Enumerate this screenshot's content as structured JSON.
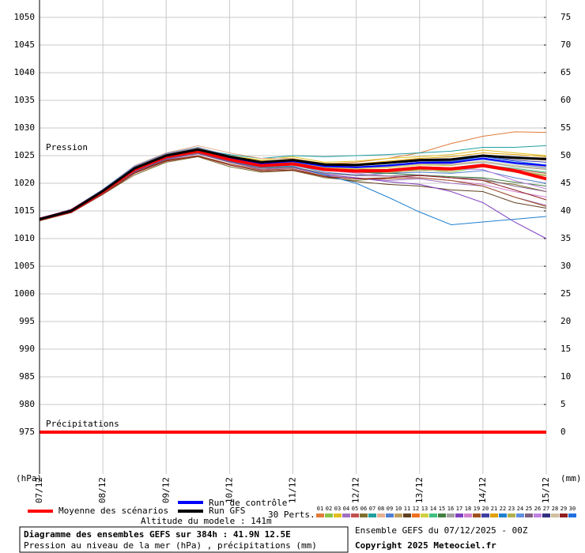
{
  "chart_data": {
    "type": "line",
    "pressure_label": "Pression",
    "precip_label": "Précipitations",
    "ylabel": "(hPa)",
    "y2label": "(mm)",
    "perts_label": "30 Perts.",
    "altitude": "Altitude du modele : 141m",
    "title": "Diagramme des ensembles GEFS sur 384h : 41.9N 12.5E",
    "subtitle": "Pression au niveau de la mer (hPa) , précipitations (mm)",
    "run_info": "Ensemble GEFS du 07/12/2025 - 00Z",
    "copyright": "Copyright 2025 Meteociel.fr",
    "ylim": [
      975,
      1050
    ],
    "yticks": [
      975,
      980,
      985,
      990,
      995,
      1000,
      1005,
      1010,
      1015,
      1020,
      1025,
      1030,
      1035,
      1040,
      1045,
      1050
    ],
    "y2lim": [
      0,
      75
    ],
    "y2ticks": [
      0,
      5,
      10,
      15,
      20,
      25,
      30,
      35,
      40,
      45,
      50,
      55,
      60,
      65,
      70,
      75
    ],
    "grid": true,
    "categories": [
      "07/12",
      null,
      "08/12",
      null,
      "09/12",
      null,
      "10/12",
      null,
      "11/12",
      null,
      "12/12",
      null,
      "13/12",
      null,
      "14/12",
      null,
      "15/12"
    ],
    "series": [
      {
        "name": "Moyenne des scénarios",
        "color": "#ff0000",
        "width": 4,
        "values": [
          1013.5,
          1015,
          1018.5,
          1022.5,
          1024.8,
          1025.8,
          1024.3,
          1023.2,
          1023.5,
          1022.5,
          1022.2,
          1022.3,
          1022.8,
          1022.6,
          1023.2,
          1022.3,
          1020.8
        ]
      },
      {
        "name": "Run de contrôle",
        "color": "#0000ff",
        "width": 2,
        "values": [
          1013.6,
          1015.1,
          1018.6,
          1022.8,
          1025.1,
          1026.2,
          1024.7,
          1023.6,
          1024,
          1023.1,
          1022.9,
          1023.2,
          1023.7,
          1023.7,
          1024.5,
          1023.7,
          1023.2
        ]
      },
      {
        "name": "Run GFS",
        "color": "#000000",
        "width": 3,
        "values": [
          1013.5,
          1015,
          1018.6,
          1022.7,
          1025,
          1026.1,
          1024.8,
          1023.8,
          1024.2,
          1023.4,
          1023.3,
          1023.7,
          1024.2,
          1024.3,
          1025,
          1024.6,
          1024.4
        ]
      },
      {
        "name": "01",
        "color": "#e07b39",
        "values": [
          1013.4,
          1015.2,
          1018.8,
          1022.8,
          1025.2,
          1026.3,
          1024.8,
          1023.8,
          1024.2,
          1023.5,
          1023.8,
          1024.5,
          1025.5,
          1027.2,
          1028.5,
          1029.3,
          1029.2
        ]
      },
      {
        "name": "02",
        "color": "#8bc34a",
        "values": [
          1013.6,
          1014.9,
          1018.2,
          1022.2,
          1024.5,
          1025.5,
          1024,
          1022.8,
          1023,
          1021.8,
          1021.5,
          1021.8,
          1022.5,
          1022,
          1023,
          1022,
          1021.5
        ]
      },
      {
        "name": "03",
        "color": "#e0c020",
        "values": [
          1013.5,
          1015.3,
          1018.6,
          1022.9,
          1025.4,
          1026.5,
          1025,
          1024.2,
          1024.8,
          1023.8,
          1024,
          1024.5,
          1024.8,
          1025.2,
          1026,
          1025.5,
          1025
        ]
      },
      {
        "name": "04",
        "color": "#a070c0",
        "values": [
          1013.3,
          1014.8,
          1018.3,
          1022,
          1024.3,
          1025.3,
          1023.8,
          1022.5,
          1022.8,
          1021.5,
          1021,
          1020.5,
          1020.8,
          1020,
          1019.5,
          1017.5,
          1016
        ]
      },
      {
        "name": "05",
        "color": "#c05050",
        "values": [
          1013.7,
          1015.1,
          1018.7,
          1023,
          1025,
          1026,
          1024.5,
          1023.3,
          1023.5,
          1022.8,
          1022.5,
          1022.5,
          1023,
          1022.8,
          1023.5,
          1022.5,
          1021.8
        ]
      },
      {
        "name": "06",
        "color": "#807030",
        "values": [
          1013.2,
          1014.7,
          1018,
          1021.5,
          1023.8,
          1024.8,
          1023,
          1022,
          1022.3,
          1021,
          1020.5,
          1021,
          1021.5,
          1021,
          1020.5,
          1019.8,
          1018.5
        ]
      },
      {
        "name": "07",
        "color": "#20a0a0",
        "values": [
          1013.5,
          1015,
          1018.4,
          1022.6,
          1025,
          1026.2,
          1025.2,
          1024.5,
          1025,
          1024.8,
          1025,
          1025.2,
          1025.5,
          1025.8,
          1026.5,
          1026.5,
          1026.8
        ]
      },
      {
        "name": "08",
        "color": "#e8b090",
        "values": [
          1013.6,
          1015.2,
          1018.9,
          1023.2,
          1025.5,
          1026.8,
          1025.5,
          1024.5,
          1024.5,
          1023.5,
          1023,
          1023,
          1023.5,
          1023.5,
          1024.5,
          1023.5,
          1023
        ]
      },
      {
        "name": "09",
        "color": "#5080d0",
        "values": [
          1013.4,
          1014.9,
          1018.5,
          1022.3,
          1024.6,
          1025.6,
          1024,
          1023,
          1023.3,
          1022,
          1021.5,
          1021.8,
          1022,
          1021.8,
          1022.3,
          1021,
          1020
        ]
      },
      {
        "name": "10",
        "color": "#c0a060",
        "values": [
          1013.5,
          1015,
          1018.3,
          1022.5,
          1024.8,
          1025.7,
          1024.2,
          1023.1,
          1023.4,
          1022.3,
          1022,
          1022,
          1022.3,
          1022.3,
          1023,
          1022,
          1021.3
        ]
      },
      {
        "name": "11",
        "color": "#604020",
        "values": [
          1013.3,
          1014.8,
          1018.1,
          1022,
          1024.2,
          1025,
          1023.3,
          1022.2,
          1022.4,
          1021.2,
          1020.3,
          1019.8,
          1019.5,
          1018.8,
          1018.5,
          1016.5,
          1015.5
        ]
      },
      {
        "name": "12",
        "color": "#f07020",
        "values": [
          1013.6,
          1015.3,
          1018.8,
          1023,
          1025.3,
          1026.4,
          1025,
          1023.9,
          1024.3,
          1023.3,
          1023.2,
          1023.6,
          1024,
          1024.3,
          1025,
          1024.5,
          1024.2
        ]
      },
      {
        "name": "13",
        "color": "#d0d040",
        "values": [
          1013.5,
          1015,
          1018.5,
          1022.7,
          1024.9,
          1026,
          1024.5,
          1023.4,
          1023.8,
          1022.8,
          1022.6,
          1022.8,
          1023.3,
          1023.2,
          1024,
          1023.2,
          1022.6
        ]
      },
      {
        "name": "14",
        "color": "#40c080",
        "values": [
          1013.4,
          1014.9,
          1018.4,
          1022.4,
          1024.7,
          1025.8,
          1024.3,
          1023.2,
          1023.4,
          1022.5,
          1022.3,
          1022.4,
          1022.8,
          1022.7,
          1023.3,
          1022.7,
          1022
        ]
      },
      {
        "name": "15",
        "color": "#408040",
        "values": [
          1013.5,
          1015.1,
          1018.6,
          1022.7,
          1024.9,
          1025.9,
          1024.4,
          1023.3,
          1023.6,
          1022.4,
          1022,
          1021.8,
          1021.5,
          1021.2,
          1021,
          1020.2,
          1019.5
        ]
      },
      {
        "name": "16",
        "color": "#a0a0a0",
        "values": [
          1013.6,
          1015.2,
          1018.7,
          1022.8,
          1025.1,
          1026.1,
          1024.6,
          1023.5,
          1023.8,
          1022.9,
          1022.8,
          1023,
          1023.5,
          1023.3,
          1023.8,
          1023,
          1022.5
        ]
      },
      {
        "name": "17",
        "color": "#8040c0",
        "values": [
          1013.4,
          1014.8,
          1018.2,
          1022.1,
          1024.4,
          1025.4,
          1023.9,
          1022.7,
          1022.9,
          1021.6,
          1021,
          1020.3,
          1019.8,
          1018.5,
          1016.5,
          1013,
          1010
        ]
      },
      {
        "name": "18",
        "color": "#d080d0",
        "values": [
          1013.5,
          1015,
          1018.5,
          1022.6,
          1024.8,
          1025.9,
          1024.4,
          1023.3,
          1023.5,
          1022.4,
          1021.8,
          1021.3,
          1021,
          1020.5,
          1019.8,
          1018.5,
          1017.5
        ]
      },
      {
        "name": "19",
        "color": "#a05020",
        "values": [
          1013.3,
          1014.7,
          1018.1,
          1021.9,
          1024.1,
          1025,
          1023.5,
          1022.4,
          1022.6,
          1021.3,
          1020.8,
          1020.8,
          1021,
          1020.5,
          1019.5,
          1017.5,
          1015.8
        ]
      },
      {
        "name": "20",
        "color": "#4040a0",
        "values": [
          1013.6,
          1015.1,
          1018.6,
          1022.8,
          1025.1,
          1026.1,
          1024.7,
          1023.8,
          1024.2,
          1023.4,
          1023.2,
          1023.6,
          1024,
          1024,
          1024.8,
          1024.2,
          1023.8
        ]
      },
      {
        "name": "21",
        "color": "#e0a000",
        "values": [
          1013.5,
          1015.2,
          1018.7,
          1022.9,
          1025.2,
          1026.4,
          1025,
          1024,
          1024.4,
          1023.6,
          1023.5,
          1024,
          1024.5,
          1024.8,
          1025.5,
          1025.2,
          1024.8
        ]
      },
      {
        "name": "22",
        "color": "#2080d0",
        "values": [
          1013.4,
          1014.9,
          1018.4,
          1022.4,
          1024.6,
          1025.6,
          1024,
          1022.9,
          1023.1,
          1021.5,
          1020,
          1017.5,
          1014.8,
          1012.5,
          1013,
          1013.5,
          1014
        ]
      },
      {
        "name": "23",
        "color": "#b0b050",
        "values": [
          1013.5,
          1015,
          1018.5,
          1022.5,
          1024.8,
          1025.8,
          1024.3,
          1023.2,
          1023.5,
          1022.5,
          1022.2,
          1022.3,
          1022.6,
          1022.5,
          1023,
          1022.3,
          1021.5
        ]
      },
      {
        "name": "24",
        "color": "#6090e0",
        "values": [
          1013.6,
          1015.3,
          1018.9,
          1023.1,
          1025.4,
          1026.5,
          1025,
          1023.9,
          1024.3,
          1023.3,
          1023,
          1023.3,
          1023.8,
          1023.8,
          1024.3,
          1023.5,
          1022.8
        ]
      },
      {
        "name": "25",
        "color": "#806080",
        "values": [
          1013.4,
          1014.8,
          1018.2,
          1022.2,
          1024.5,
          1025.4,
          1023.8,
          1022.7,
          1022.9,
          1021.8,
          1021.4,
          1021.3,
          1021.5,
          1021,
          1020.8,
          1019.5,
          1018.5
        ]
      },
      {
        "name": "26",
        "color": "#c080e0",
        "values": [
          1013.5,
          1015,
          1018.4,
          1022.6,
          1024.8,
          1025.9,
          1024.4,
          1023.3,
          1023.6,
          1022.6,
          1022.4,
          1022.5,
          1022.9,
          1022.6,
          1022.5,
          1020.5,
          1019
        ]
      },
      {
        "name": "27",
        "color": "#303080",
        "values": [
          1013.5,
          1015.1,
          1018.6,
          1022.7,
          1025,
          1026.1,
          1024.6,
          1023.6,
          1024,
          1023.2,
          1023.2,
          1023.6,
          1024,
          1024.2,
          1025,
          1024.8,
          1024.5
        ]
      },
      {
        "name": "28",
        "color": "#d0c0a0",
        "values": [
          1013.6,
          1015.2,
          1018.7,
          1022.9,
          1025.2,
          1026.3,
          1024.8,
          1023.8,
          1024.1,
          1023.2,
          1023,
          1023.2,
          1023.6,
          1023.5,
          1024,
          1023.2,
          1022.6
        ]
      },
      {
        "name": "29",
        "color": "#902020",
        "values": [
          1013.3,
          1014.7,
          1018,
          1021.8,
          1024,
          1024.9,
          1023.3,
          1022.2,
          1022.4,
          1021.2,
          1020.8,
          1021,
          1021.4,
          1021,
          1020.5,
          1018.8,
          1017
        ]
      },
      {
        "name": "30",
        "color": "#2070e0",
        "values": [
          1013.5,
          1015,
          1018.5,
          1022.6,
          1024.9,
          1026,
          1024.5,
          1023.5,
          1023.9,
          1023,
          1022.9,
          1023.3,
          1023.8,
          1023.9,
          1024.8,
          1024,
          1023.3
        ]
      }
    ],
    "precipitation_mean": {
      "color": "#ff0000",
      "values": [
        0,
        0,
        0,
        0,
        0,
        0,
        0,
        0,
        0,
        0,
        0,
        0,
        0,
        0,
        0,
        0,
        0
      ]
    }
  }
}
